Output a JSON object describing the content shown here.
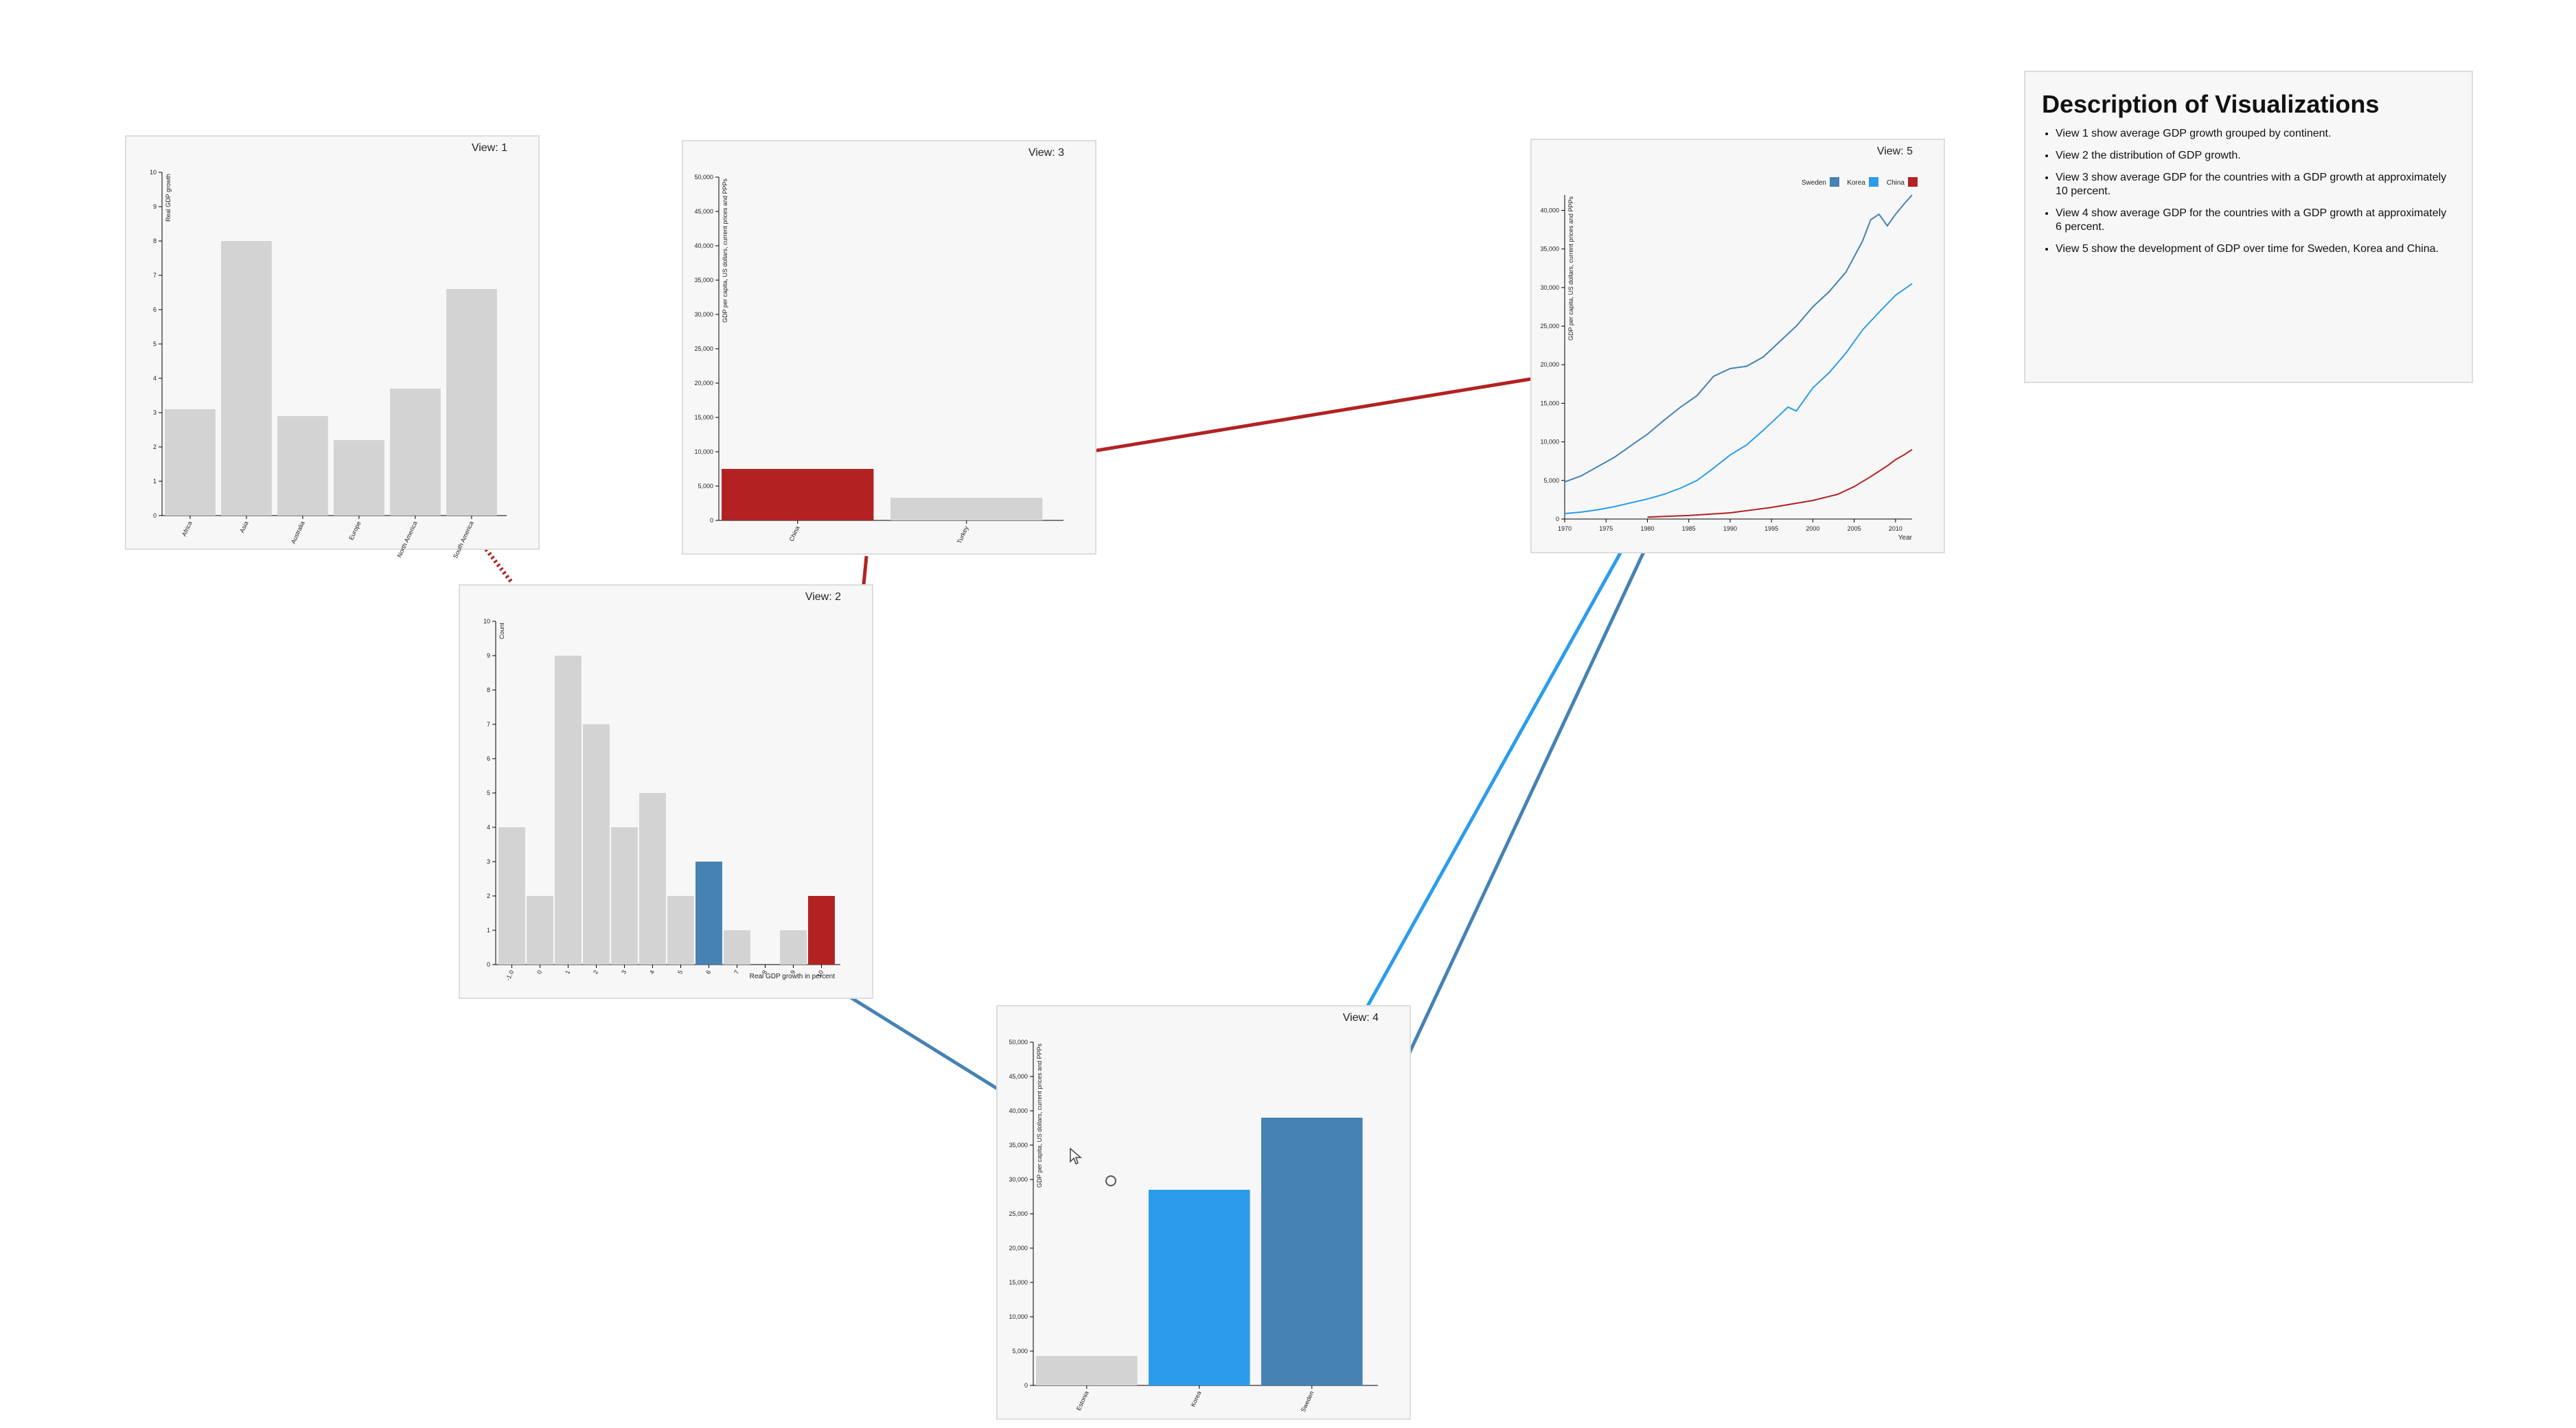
{
  "views": {
    "v1": {
      "title": "View: 1"
    },
    "v2": {
      "title": "View: 2"
    },
    "v3": {
      "title": "View: 3"
    },
    "v4": {
      "title": "View: 4"
    },
    "v5": {
      "title": "View: 5"
    }
  },
  "description": {
    "title": "Description of Visualizations",
    "items": [
      "View 1 show average GDP growth grouped by continent.",
      "View 2 the distribution of GDP growth.",
      "View 3 show average GDP for the countries with a GDP growth at approximately 10 percent.",
      "View 4 show average GDP for the countries with a GDP growth at approximately 6 percent.",
      "View 5 show the development of GDP over time for Sweden, Korea and China."
    ]
  },
  "colors": {
    "bar": "#d3d3d3",
    "china": "#b22222",
    "korea": "#2b9cec",
    "sweden": "#4682b4",
    "panel": "#f7f7f7"
  },
  "chart_data": [
    {
      "id": "v1",
      "type": "bar",
      "title": "",
      "ylabel": "Real GDP growth",
      "xlabel": "",
      "ylim": [
        0,
        10
      ],
      "yticks": [
        "0",
        "1",
        "2",
        "3",
        "4",
        "5",
        "6",
        "7",
        "8",
        "9",
        "10"
      ],
      "categories": [
        "Africa",
        "Asia",
        "Australia",
        "Europe",
        "North America",
        "South America"
      ],
      "values": [
        3.1,
        8.0,
        2.9,
        2.2,
        3.7,
        6.6
      ]
    },
    {
      "id": "v2",
      "type": "bar",
      "title": "",
      "ylabel": "Count",
      "xlabel": "Real GDP growth in percent",
      "ylim": [
        0,
        10
      ],
      "yticks": [
        "0",
        "1",
        "2",
        "3",
        "4",
        "5",
        "6",
        "7",
        "8",
        "9",
        "10"
      ],
      "categories": [
        "-1.0",
        "0",
        "1",
        "2",
        "3",
        "4",
        "5",
        "6",
        "7",
        "8",
        "9",
        "10"
      ],
      "values": [
        4,
        2,
        9,
        7,
        4,
        5,
        2,
        3,
        1,
        0,
        1,
        2
      ],
      "highlight": {
        "7": "sweden",
        "11": "china"
      }
    },
    {
      "id": "v3",
      "type": "bar",
      "title": "",
      "ylabel": "GDP per capita, US dollars, current prices and PPPs",
      "xlabel": "",
      "ylim": [
        0,
        50000
      ],
      "yticks": [
        "0",
        "5,000",
        "10,000",
        "15,000",
        "20,000",
        "25,000",
        "30,000",
        "35,000",
        "40,000",
        "45,000",
        "50,000"
      ],
      "categories": [
        "China",
        "Turkey"
      ],
      "values": [
        7500,
        3300
      ],
      "highlight": {
        "0": "china"
      }
    },
    {
      "id": "v4",
      "type": "bar",
      "title": "",
      "ylabel": "GDP per capita, US dollars, current prices and PPPs",
      "xlabel": "",
      "ylim": [
        0,
        50000
      ],
      "yticks": [
        "0",
        "5,000",
        "10,000",
        "15,000",
        "20,000",
        "25,000",
        "30,000",
        "35,000",
        "40,000",
        "45,000",
        "50,000"
      ],
      "categories": [
        "Estonia",
        "Korea",
        "Sweden"
      ],
      "values": [
        4300,
        28500,
        39000
      ],
      "highlight": {
        "1": "korea",
        "2": "sweden"
      }
    },
    {
      "id": "v5",
      "type": "line",
      "title": "",
      "ylabel": "GDP per capita, US dollars, current prices and PPPs",
      "xlabel": "Year",
      "xlim": [
        1970,
        2012
      ],
      "ylim": [
        0,
        42000
      ],
      "xticks": [
        "1970",
        "1975",
        "1980",
        "1985",
        "1990",
        "1995",
        "2000",
        "2005",
        "2010"
      ],
      "yticks": [
        "0",
        "5,000",
        "10,000",
        "15,000",
        "20,000",
        "25,000",
        "30,000",
        "35,000",
        "40,000"
      ],
      "legend": [
        "Sweden",
        "Korea",
        "China"
      ],
      "legend_position": "top-right",
      "series": [
        {
          "name": "Sweden",
          "color": "sweden",
          "x": [
            1970,
            1972,
            1974,
            1976,
            1978,
            1980,
            1982,
            1984,
            1986,
            1988,
            1990,
            1992,
            1994,
            1996,
            1998,
            2000,
            2002,
            2004,
            2006,
            2007,
            2008,
            2009,
            2010,
            2011,
            2012
          ],
          "y": [
            4800,
            5600,
            6800,
            8000,
            9500,
            11000,
            12800,
            14500,
            16000,
            18500,
            19500,
            19800,
            21000,
            23000,
            25000,
            27500,
            29500,
            32000,
            36000,
            38800,
            39500,
            38000,
            39500,
            40800,
            42000
          ]
        },
        {
          "name": "Korea",
          "color": "korea",
          "x": [
            1970,
            1972,
            1974,
            1976,
            1978,
            1980,
            1982,
            1984,
            1986,
            1988,
            1990,
            1992,
            1994,
            1996,
            1997,
            1998,
            2000,
            2002,
            2004,
            2006,
            2008,
            2010,
            2012
          ],
          "y": [
            700,
            900,
            1200,
            1600,
            2100,
            2600,
            3200,
            4000,
            5000,
            6600,
            8300,
            9600,
            11500,
            13500,
            14500,
            14000,
            17000,
            19000,
            21500,
            24500,
            26800,
            29000,
            30500
          ]
        },
        {
          "name": "China",
          "color": "china",
          "x": [
            1980,
            1985,
            1990,
            1995,
            2000,
            2003,
            2005,
            2007,
            2009,
            2010,
            2011,
            2012
          ],
          "y": [
            250,
            450,
            800,
            1500,
            2400,
            3200,
            4200,
            5500,
            6900,
            7700,
            8300,
            9000
          ]
        }
      ]
    }
  ]
}
